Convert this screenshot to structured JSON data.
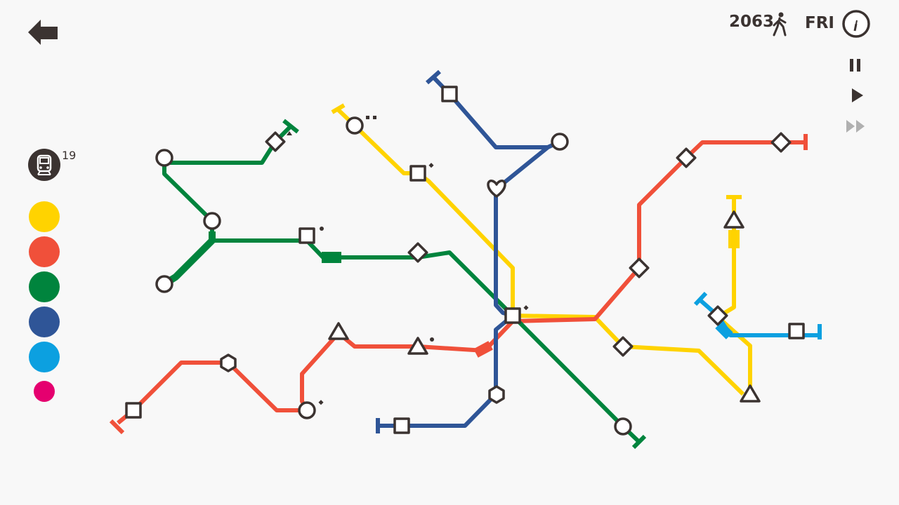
{
  "hud": {
    "passengers": "2063",
    "day": "FRI",
    "locomotives_available": "19"
  },
  "colors": {
    "background": "#f8f8f8",
    "ink": "#3b3331",
    "yellow_line": "#ffd300",
    "red_line": "#f0503a",
    "green_line": "#00843d",
    "blue_line": "#2f5597",
    "cyan_line": "#0ca0e0",
    "magenta_line": "#e5006f"
  },
  "icons": {
    "back": "back-arrow-icon",
    "walker": "passenger-walking-icon",
    "clock": "clock-icon",
    "pause": "pause-icon",
    "play": "play-icon",
    "fast_forward": "fast-forward-icon",
    "locomotive": "locomotive-icon"
  },
  "palette": [
    "yellow",
    "red",
    "green",
    "blue",
    "cyan",
    "magenta"
  ],
  "controls": {
    "pause_state": "active",
    "play_state": "active",
    "fast_forward_state": "disabled"
  }
}
